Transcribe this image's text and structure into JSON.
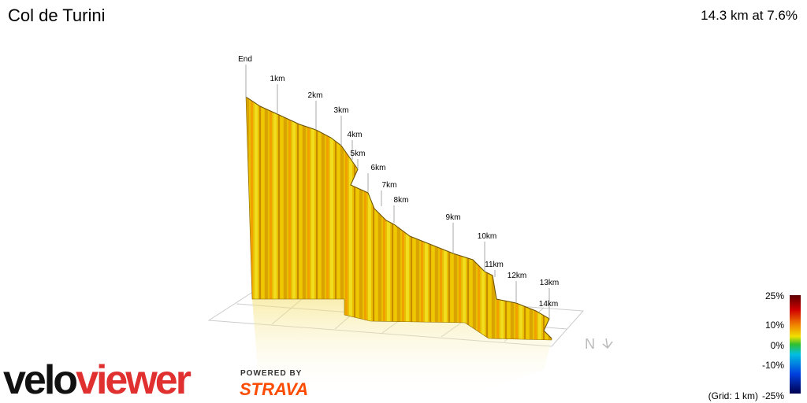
{
  "header": {
    "title": "Col de Turini",
    "summary": "14.3 km at 7.6%"
  },
  "profile": {
    "markers": [
      "End",
      "1km",
      "2km",
      "3km",
      "4km",
      "5km",
      "6km",
      "7km",
      "8km",
      "9km",
      "10km",
      "11km",
      "12km",
      "13km",
      "14km"
    ]
  },
  "compass": "N",
  "gradient_scale": {
    "ticks": [
      "25%",
      "10%",
      "0%",
      "-10%",
      "-25%"
    ],
    "grid_note": "(Grid: 1 km)"
  },
  "branding": {
    "logo_left": "velo",
    "logo_right": "viewer",
    "powered_by": "POWERED BY",
    "partner": "STRAVA"
  }
}
